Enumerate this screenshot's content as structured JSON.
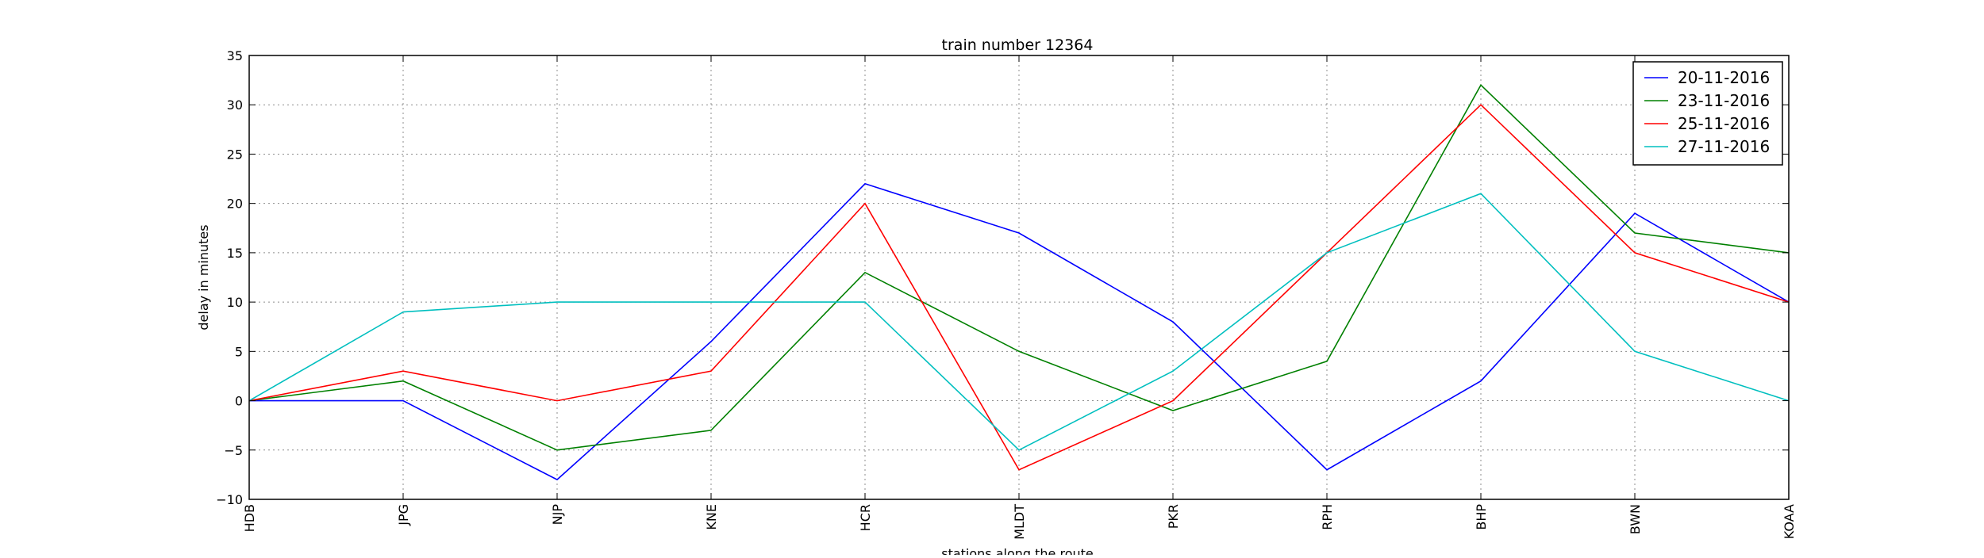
{
  "chart_data": {
    "type": "line",
    "title": "train number 12364",
    "xlabel": "stations along the route",
    "ylabel": "delay in minutes",
    "categories": [
      "HDB",
      "JPG",
      "NJP",
      "KNE",
      "HCR",
      "MLDT",
      "PKR",
      "RPH",
      "BHP",
      "BWN",
      "KOAA"
    ],
    "ylim": [
      -10,
      35
    ],
    "yticks": [
      -10,
      -5,
      0,
      5,
      10,
      15,
      20,
      25,
      30,
      35
    ],
    "grid": true,
    "legend_position": "top-right",
    "series": [
      {
        "name": "20-11-2016",
        "color": "#0000ff",
        "values": [
          0,
          0,
          -8,
          6,
          22,
          17,
          8,
          -7,
          2,
          19,
          10
        ]
      },
      {
        "name": "23-11-2016",
        "color": "#008000",
        "values": [
          0,
          2,
          -5,
          -3,
          13,
          5,
          -1,
          4,
          32,
          17,
          15
        ]
      },
      {
        "name": "25-11-2016",
        "color": "#ff0000",
        "values": [
          0,
          3,
          0,
          3,
          20,
          -7,
          0,
          15,
          30,
          15,
          10
        ]
      },
      {
        "name": "27-11-2016",
        "color": "#00bfbf",
        "values": [
          0,
          9,
          10,
          10,
          10,
          -5,
          3,
          15,
          21,
          5,
          0
        ]
      }
    ]
  }
}
